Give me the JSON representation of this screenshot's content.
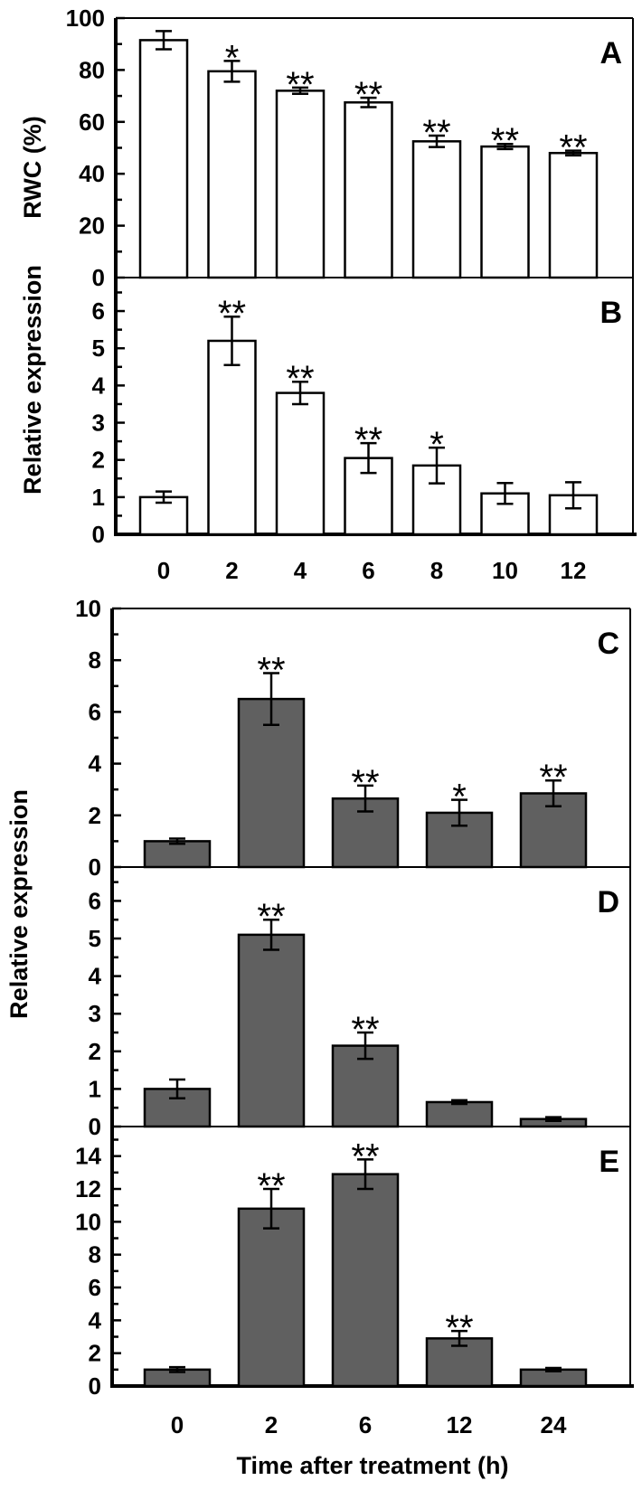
{
  "chart_data": [
    {
      "panel": "A",
      "type": "bar",
      "ylabel": "RWC (%)",
      "xlabel": "",
      "categories": [
        "0",
        "2",
        "4",
        "6",
        "8",
        "10",
        "12"
      ],
      "values": [
        91.5,
        79.5,
        72,
        67.5,
        52.5,
        50.5,
        48
      ],
      "errors": [
        3.5,
        4,
        1.2,
        1.8,
        2.2,
        1.0,
        0.9
      ],
      "significance": [
        "",
        "*",
        "**",
        "**",
        "**",
        "**",
        "**"
      ],
      "ylim": [
        0,
        100
      ],
      "yticks": [
        0,
        20,
        40,
        60,
        80,
        100
      ],
      "bar_color": "#ffffff"
    },
    {
      "panel": "B",
      "type": "bar",
      "ylabel": "Relative expression",
      "xlabel": "",
      "categories": [
        "0",
        "2",
        "4",
        "6",
        "8",
        "10",
        "12"
      ],
      "values": [
        1.0,
        5.2,
        3.8,
        2.05,
        1.85,
        1.1,
        1.05
      ],
      "errors": [
        0.15,
        0.65,
        0.3,
        0.4,
        0.48,
        0.28,
        0.35
      ],
      "significance": [
        "",
        "**",
        "**",
        "**",
        "*",
        "",
        ""
      ],
      "ylim": [
        0,
        6.9
      ],
      "yticks": [
        0,
        1,
        2,
        3,
        4,
        5,
        6
      ],
      "bar_color": "#ffffff"
    },
    {
      "panel": "C",
      "type": "bar",
      "ylabel": "Relative expression",
      "xlabel": "",
      "categories": [
        "0",
        "2",
        "6",
        "12",
        "24"
      ],
      "values": [
        1.0,
        6.5,
        2.65,
        2.1,
        2.85
      ],
      "errors": [
        0.1,
        1.0,
        0.5,
        0.5,
        0.5
      ],
      "significance": [
        "",
        "**",
        "**",
        "*",
        "**"
      ],
      "ylim": [
        0,
        10
      ],
      "yticks": [
        0,
        2,
        4,
        6,
        8,
        10
      ],
      "bar_color": "#606060"
    },
    {
      "panel": "D",
      "type": "bar",
      "ylabel": "Relative expression",
      "xlabel": "",
      "categories": [
        "0",
        "2",
        "6",
        "12",
        "24"
      ],
      "values": [
        1.0,
        5.1,
        2.15,
        0.65,
        0.2
      ],
      "errors": [
        0.25,
        0.4,
        0.35,
        0.05,
        0.05
      ],
      "significance": [
        "",
        "**",
        "**",
        "",
        ""
      ],
      "ylim": [
        0,
        6.9
      ],
      "yticks": [
        0,
        1,
        2,
        3,
        4,
        5,
        6
      ],
      "bar_color": "#606060"
    },
    {
      "panel": "E",
      "type": "bar",
      "ylabel": "Relative expression",
      "xlabel": "Time after treatment (h)",
      "categories": [
        "0",
        "2",
        "6",
        "12",
        "24"
      ],
      "values": [
        1.0,
        10.8,
        12.9,
        2.9,
        1.0
      ],
      "errors": [
        0.15,
        1.2,
        0.9,
        0.45,
        0.1
      ],
      "significance": [
        "",
        "**",
        "**",
        "**",
        ""
      ],
      "ylim": [
        0,
        15.8
      ],
      "yticks": [
        0,
        2,
        4,
        6,
        8,
        10,
        12,
        14
      ],
      "bar_color": "#606060"
    }
  ],
  "figure": {
    "top_ylabel_rwc": "RWC (%)",
    "top_ylabel_expr": "Relative expression",
    "bottom_ylabel": "Relative expression",
    "bottom_xlabel": "Time after treatment (h)"
  }
}
